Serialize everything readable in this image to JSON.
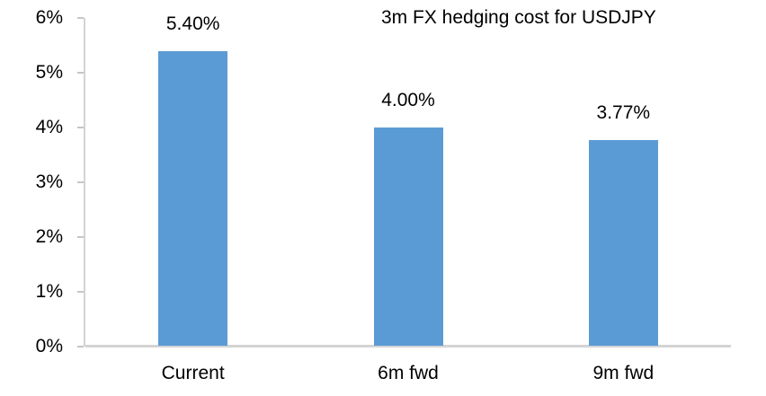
{
  "chart_data": {
    "type": "bar",
    "title": "3m FX hedging cost for USDJPY",
    "categories": [
      "Current",
      "6m fwd",
      "9m fwd"
    ],
    "values": [
      5.4,
      4.0,
      3.77
    ],
    "data_labels": [
      "5.40%",
      "4.00%",
      "3.77%"
    ],
    "xlabel": "",
    "ylabel": "",
    "ylim": [
      0,
      6
    ],
    "y_ticks": [
      {
        "value": 0,
        "label": "0%"
      },
      {
        "value": 1,
        "label": "1%"
      },
      {
        "value": 2,
        "label": "2%"
      },
      {
        "value": 3,
        "label": "3%"
      },
      {
        "value": 4,
        "label": "4%"
      },
      {
        "value": 5,
        "label": "5%"
      },
      {
        "value": 6,
        "label": "6%"
      }
    ],
    "grid": false,
    "legend": false,
    "legend_position": "none",
    "bar_color": "#5B9BD5",
    "axis_color": "#D4D4D4",
    "tick_color": "#C6C6C6",
    "text_color": "#000000",
    "background_color": "#FFFFFF"
  }
}
